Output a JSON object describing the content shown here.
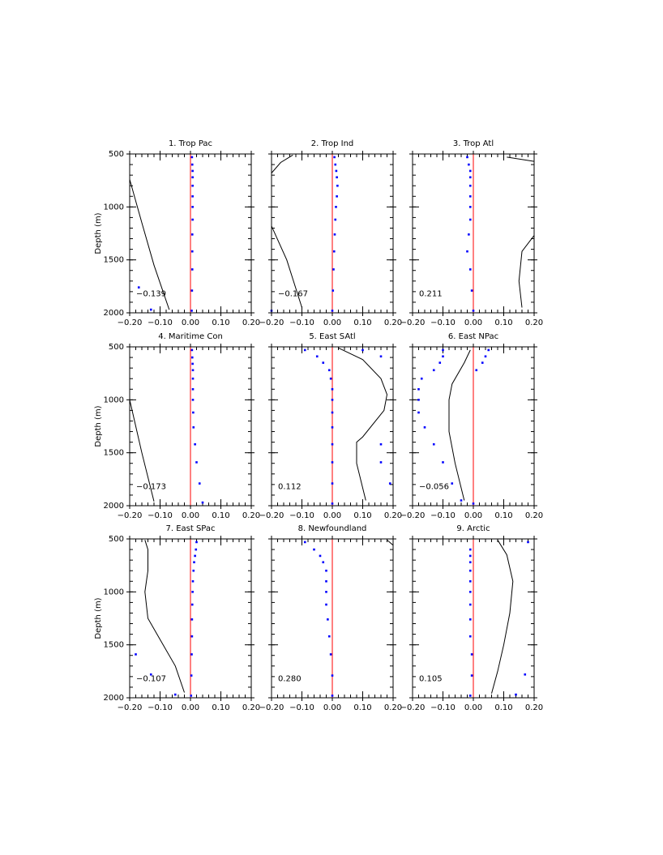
{
  "chart_data": [
    {
      "type": "line",
      "title": "1. Trop Pac",
      "annotation": "−0.139",
      "ylabel": "Depth (m)",
      "show_ytick_labels": true,
      "xlim": [
        -0.2,
        0.2
      ],
      "xticks": [
        {
          "value": -0.2,
          "label": "−0.20"
        },
        {
          "value": -0.1,
          "label": "−0.10"
        },
        {
          "value": 0,
          "label": "0.00"
        },
        {
          "value": 0.1,
          "label": "0.10"
        },
        {
          "value": 0.2,
          "label": "0.20"
        }
      ],
      "ylim": [
        2000,
        500
      ],
      "yticks": [
        500,
        1000,
        1500,
        2000
      ],
      "xminor_step": 0.02,
      "yminor_step": 100,
      "refline": {
        "x": 0,
        "color": "#ff0000"
      },
      "series": [
        {
          "style": "line",
          "color": "#000000",
          "x": [
            -0.2,
            -0.16,
            -0.12,
            -0.07
          ],
          "y": [
            740,
            1150,
            1550,
            1970
          ]
        },
        {
          "style": "points",
          "color": "#0000ff",
          "x": [
            0.005,
            0.006,
            0.007,
            0.007,
            0.007,
            0.007,
            0.007,
            0.007,
            0.006,
            0.006,
            0.006,
            0.005,
            0.004,
            -0.17,
            -0.13
          ],
          "y": [
            530,
            600,
            660,
            720,
            800,
            900,
            1000,
            1120,
            1260,
            1420,
            1590,
            1790,
            1980,
            1760,
            1970
          ]
        }
      ]
    },
    {
      "type": "line",
      "title": "2. Trop Ind",
      "annotation": "−0.167",
      "show_ytick_labels": false,
      "xlim": [
        -0.2,
        0.2
      ],
      "xticks": [
        {
          "value": -0.2,
          "label": "−0.20"
        },
        {
          "value": -0.1,
          "label": "−0.10"
        },
        {
          "value": 0,
          "label": "0.00"
        },
        {
          "value": 0.1,
          "label": "0.10"
        },
        {
          "value": 0.2,
          "label": "0.20"
        }
      ],
      "ylim": [
        2000,
        500
      ],
      "yticks": [
        500,
        1000,
        1500,
        2000
      ],
      "xminor_step": 0.02,
      "yminor_step": 100,
      "refline": {
        "x": 0,
        "color": "#ff0000"
      },
      "series": [
        {
          "style": "line",
          "color": "#000000",
          "x": [
            -0.13,
            -0.17,
            -0.2,
            null,
            -0.2,
            -0.15,
            -0.1
          ],
          "y": [
            510,
            580,
            680,
            null,
            1180,
            1500,
            1950
          ]
        },
        {
          "style": "points",
          "color": "#0000ff",
          "x": [
            0.007,
            0.01,
            0.013,
            0.015,
            0.017,
            0.015,
            0.012,
            0.01,
            0.008,
            0.006,
            0.004,
            0.002,
            0.0,
            -0.2
          ],
          "y": [
            530,
            600,
            660,
            720,
            800,
            900,
            1000,
            1120,
            1260,
            1420,
            1590,
            1790,
            1980,
            1980
          ]
        }
      ]
    },
    {
      "type": "line",
      "title": "3. Trop Atl",
      "annotation": "0.211",
      "show_ytick_labels": false,
      "xlim": [
        -0.2,
        0.2
      ],
      "xticks": [
        {
          "value": -0.2,
          "label": "−0.20"
        },
        {
          "value": -0.1,
          "label": "−0.10"
        },
        {
          "value": 0,
          "label": "0.00"
        },
        {
          "value": 0.1,
          "label": "0.10"
        },
        {
          "value": 0.2,
          "label": "0.20"
        }
      ],
      "ylim": [
        2000,
        500
      ],
      "yticks": [
        500,
        1000,
        1500,
        2000
      ],
      "xminor_step": 0.02,
      "yminor_step": 100,
      "refline": {
        "x": 0,
        "color": "#ff0000"
      },
      "series": [
        {
          "style": "line",
          "color": "#000000",
          "x": [
            0.11,
            0.2,
            null,
            0.2,
            0.16,
            0.15,
            0.16
          ],
          "y": [
            530,
            570,
            null,
            1270,
            1420,
            1700,
            1950
          ]
        },
        {
          "style": "points",
          "color": "#0000ff",
          "x": [
            -0.02,
            -0.015,
            -0.01,
            -0.01,
            -0.01,
            -0.01,
            -0.01,
            -0.01,
            -0.015,
            -0.02,
            -0.01,
            -0.005,
            0.0
          ],
          "y": [
            530,
            600,
            660,
            720,
            800,
            900,
            1000,
            1120,
            1260,
            1420,
            1590,
            1790,
            1980
          ]
        }
      ]
    },
    {
      "type": "line",
      "title": "4. Maritime Con",
      "annotation": "−0.173",
      "ylabel": "Depth (m)",
      "show_ytick_labels": true,
      "xlim": [
        -0.2,
        0.2
      ],
      "xticks": [
        {
          "value": -0.2,
          "label": "−0.20"
        },
        {
          "value": -0.1,
          "label": "−0.10"
        },
        {
          "value": 0,
          "label": "0.00"
        },
        {
          "value": 0.1,
          "label": "0.10"
        },
        {
          "value": 0.2,
          "label": "0.20"
        }
      ],
      "ylim": [
        2000,
        500
      ],
      "yticks": [
        500,
        1000,
        1500,
        2000
      ],
      "xminor_step": 0.02,
      "yminor_step": 100,
      "refline": {
        "x": 0,
        "color": "#ff0000"
      },
      "series": [
        {
          "style": "line",
          "color": "#000000",
          "x": [
            -0.2,
            -0.18,
            -0.16,
            -0.12
          ],
          "y": [
            1000,
            1250,
            1500,
            1960
          ]
        },
        {
          "style": "points",
          "color": "#0000ff",
          "x": [
            0.005,
            0.006,
            0.007,
            0.008,
            0.008,
            0.008,
            0.008,
            0.009,
            0.01,
            0.015,
            0.02,
            0.03,
            0.04
          ],
          "y": [
            530,
            600,
            660,
            720,
            800,
            900,
            1000,
            1120,
            1260,
            1420,
            1590,
            1790,
            1970
          ]
        }
      ]
    },
    {
      "type": "line",
      "title": "5. East SAtl",
      "annotation": "0.112",
      "show_ytick_labels": false,
      "xlim": [
        -0.2,
        0.2
      ],
      "xticks": [
        {
          "value": -0.2,
          "label": "−0.20"
        },
        {
          "value": -0.1,
          "label": "−0.10"
        },
        {
          "value": 0,
          "label": "0.00"
        },
        {
          "value": 0.1,
          "label": "0.10"
        },
        {
          "value": 0.2,
          "label": "0.20"
        }
      ],
      "ylim": [
        2000,
        500
      ],
      "yticks": [
        500,
        1000,
        1500,
        2000
      ],
      "xminor_step": 0.02,
      "yminor_step": 100,
      "refline": {
        "x": 0,
        "color": "#ff0000"
      },
      "series": [
        {
          "style": "line",
          "color": "#000000",
          "x": [
            0.02,
            0.1,
            0.16,
            0.18,
            0.17,
            0.1,
            0.08,
            0.08,
            0.11
          ],
          "y": [
            510,
            620,
            800,
            950,
            1100,
            1350,
            1400,
            1600,
            1950
          ]
        },
        {
          "style": "points",
          "color": "#0000ff",
          "x": [
            -0.09,
            0.1,
            -0.05,
            0.16,
            -0.03,
            -0.01,
            -0.005,
            0,
            0,
            0,
            0,
            0,
            0,
            0,
            0,
            0.16,
            0.16,
            0.19
          ],
          "y": [
            530,
            530,
            590,
            590,
            650,
            720,
            800,
            900,
            1000,
            1120,
            1260,
            1420,
            1590,
            1790,
            1980,
            1420,
            1590,
            1790
          ]
        }
      ]
    },
    {
      "type": "line",
      "title": "6. East NPac",
      "annotation": "−0.056",
      "show_ytick_labels": false,
      "xlim": [
        -0.2,
        0.2
      ],
      "xticks": [
        {
          "value": -0.2,
          "label": "−0.20"
        },
        {
          "value": -0.1,
          "label": "−0.10"
        },
        {
          "value": 0,
          "label": "0.00"
        },
        {
          "value": 0.1,
          "label": "0.10"
        },
        {
          "value": 0.2,
          "label": "0.20"
        }
      ],
      "ylim": [
        2000,
        500
      ],
      "yticks": [
        500,
        1000,
        1500,
        2000
      ],
      "xminor_step": 0.02,
      "yminor_step": 100,
      "refline": {
        "x": 0,
        "color": "#ff0000"
      },
      "series": [
        {
          "style": "line",
          "color": "#000000",
          "x": [
            -0.01,
            -0.03,
            -0.07,
            -0.08,
            -0.08,
            -0.06,
            -0.03
          ],
          "y": [
            530,
            650,
            850,
            1000,
            1300,
            1600,
            1950
          ]
        },
        {
          "style": "points",
          "color": "#0000ff",
          "x": [
            0.05,
            0.04,
            0.03,
            0.01,
            -0.1,
            -0.1,
            -0.11,
            -0.13,
            -0.17,
            -0.18,
            -0.18,
            -0.18,
            -0.16,
            -0.13,
            -0.1,
            -0.07,
            -0.04,
            0.0
          ],
          "y": [
            530,
            590,
            650,
            720,
            530,
            590,
            650,
            720,
            800,
            900,
            1000,
            1120,
            1260,
            1420,
            1590,
            1790,
            1950,
            1980
          ]
        }
      ]
    },
    {
      "type": "line",
      "title": "7. East SPac",
      "annotation": "−0.107",
      "ylabel": "Depth (m)",
      "show_ytick_labels": true,
      "xlim": [
        -0.2,
        0.2
      ],
      "xticks": [
        {
          "value": -0.2,
          "label": "−0.20"
        },
        {
          "value": -0.1,
          "label": "−0.10"
        },
        {
          "value": 0,
          "label": "0.00"
        },
        {
          "value": 0.1,
          "label": "0.10"
        },
        {
          "value": 0.2,
          "label": "0.20"
        }
      ],
      "ylim": [
        2000,
        500
      ],
      "yticks": [
        500,
        1000,
        1500,
        2000
      ],
      "xminor_step": 0.02,
      "yminor_step": 100,
      "refline": {
        "x": 0,
        "color": "#ff0000"
      },
      "series": [
        {
          "style": "line",
          "color": "#000000",
          "x": [
            -0.15,
            -0.14,
            -0.14,
            -0.15,
            -0.14,
            -0.1,
            -0.05,
            -0.02
          ],
          "y": [
            510,
            600,
            800,
            1000,
            1250,
            1450,
            1700,
            1950
          ]
        },
        {
          "style": "points",
          "color": "#0000ff",
          "x": [
            0.02,
            0.018,
            0.015,
            0.012,
            0.01,
            0.008,
            0.007,
            0.006,
            0.005,
            0.005,
            0.004,
            0.003,
            0.002,
            -0.18,
            -0.13,
            -0.05
          ],
          "y": [
            530,
            600,
            660,
            720,
            800,
            900,
            1000,
            1120,
            1260,
            1420,
            1590,
            1790,
            1980,
            1590,
            1780,
            1970
          ]
        }
      ]
    },
    {
      "type": "line",
      "title": "8. Newfoundland",
      "annotation": "0.280",
      "show_ytick_labels": false,
      "xlim": [
        -0.2,
        0.2
      ],
      "xticks": [
        {
          "value": -0.2,
          "label": "−0.20"
        },
        {
          "value": -0.1,
          "label": "−0.10"
        },
        {
          "value": 0,
          "label": "0.00"
        },
        {
          "value": 0.1,
          "label": "0.10"
        },
        {
          "value": 0.2,
          "label": "0.20"
        }
      ],
      "ylim": [
        2000,
        500
      ],
      "yticks": [
        500,
        1000,
        1500,
        2000
      ],
      "xminor_step": 0.02,
      "yminor_step": 100,
      "refline": {
        "x": 0,
        "color": "#ff0000"
      },
      "series": [
        {
          "style": "line",
          "color": "#000000",
          "x": [
            0.18,
            0.2
          ],
          "y": [
            510,
            560
          ]
        },
        {
          "style": "points",
          "color": "#0000ff",
          "x": [
            -0.09,
            -0.06,
            -0.04,
            -0.03,
            -0.02,
            -0.02,
            -0.02,
            -0.02,
            -0.015,
            -0.01,
            -0.005,
            0.0,
            0.0
          ],
          "y": [
            530,
            600,
            660,
            720,
            800,
            900,
            1000,
            1120,
            1260,
            1420,
            1590,
            1790,
            1980
          ]
        }
      ]
    },
    {
      "type": "line",
      "title": "9. Arctic",
      "annotation": "0.105",
      "show_ytick_labels": false,
      "xlim": [
        -0.2,
        0.2
      ],
      "xticks": [
        {
          "value": -0.2,
          "label": "−0.20"
        },
        {
          "value": -0.1,
          "label": "−0.10"
        },
        {
          "value": 0,
          "label": "0.00"
        },
        {
          "value": 0.1,
          "label": "0.10"
        },
        {
          "value": 0.2,
          "label": "0.20"
        }
      ],
      "ylim": [
        2000,
        500
      ],
      "yticks": [
        500,
        1000,
        1500,
        2000
      ],
      "xminor_step": 0.02,
      "yminor_step": 100,
      "refline": {
        "x": 0,
        "color": "#ff0000"
      },
      "series": [
        {
          "style": "line",
          "color": "#000000",
          "x": [
            0.08,
            0.11,
            0.13,
            0.12,
            0.1,
            0.08,
            0.06
          ],
          "y": [
            510,
            650,
            900,
            1200,
            1500,
            1750,
            1960
          ]
        },
        {
          "style": "points",
          "color": "#0000ff",
          "x": [
            0.18,
            -0.01,
            -0.01,
            -0.01,
            -0.01,
            -0.01,
            -0.01,
            -0.01,
            -0.01,
            -0.01,
            -0.005,
            -0.005,
            -0.01,
            0.17,
            0.14
          ],
          "y": [
            530,
            600,
            660,
            720,
            800,
            900,
            1000,
            1120,
            1260,
            1420,
            1590,
            1790,
            1980,
            1780,
            1970
          ]
        }
      ]
    }
  ]
}
